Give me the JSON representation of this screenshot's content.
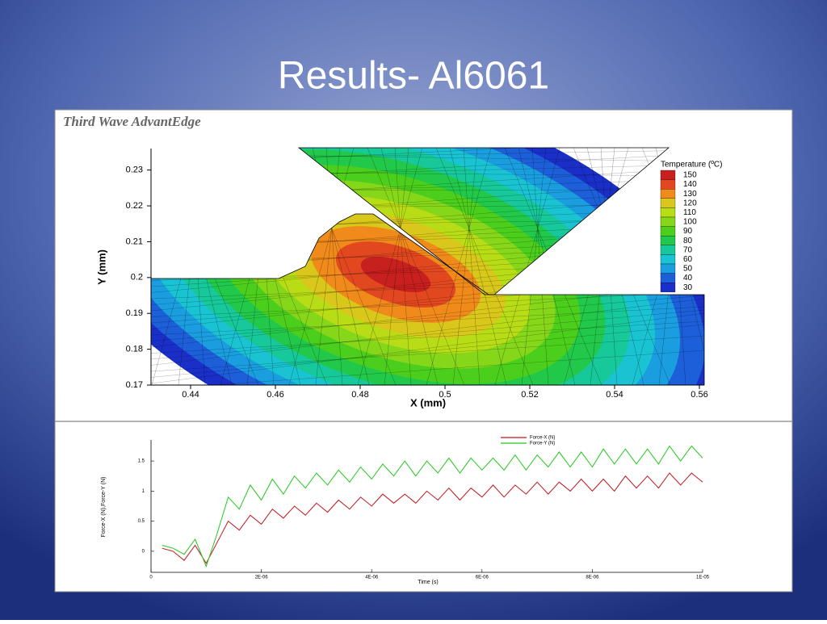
{
  "title": "Results- Al6061",
  "software": "Third Wave AdvantEdge",
  "chart_data": [
    {
      "type": "contour",
      "xlabel": "X (mm)",
      "ylabel": "Y (mm)",
      "xlim": [
        0.43,
        0.56
      ],
      "ylim": [
        0.17,
        0.236
      ],
      "xticks": [
        0.44,
        0.46,
        0.48,
        0.5,
        0.52,
        0.54,
        0.56
      ],
      "yticks": [
        0.17,
        0.18,
        0.19,
        0.2,
        0.21,
        0.22,
        0.23
      ],
      "colorbar": {
        "title": "Temperature (ºC)",
        "levels": [
          150,
          140,
          130,
          120,
          110,
          100,
          90,
          80,
          70,
          60,
          50,
          40,
          30
        ],
        "colors": [
          "#c8201e",
          "#e2481f",
          "#f08a1a",
          "#d9c81b",
          "#b8dd16",
          "#86d61a",
          "#4ccf1c",
          "#22c84a",
          "#17c89a",
          "#1ac3d2",
          "#1a9ee0",
          "#1c5fd8",
          "#1a2fc8"
        ]
      }
    },
    {
      "type": "line",
      "xlabel": "Time (s)",
      "ylabel": "Force-X (N),Force-Y (N)",
      "xlim": [
        0,
        1e-05
      ],
      "ylim": [
        -0.35,
        1.85
      ],
      "xticks": [
        0,
        {
          "value": 2e-06,
          "label": "2E-06"
        },
        {
          "value": 4e-06,
          "label": "4E-06"
        },
        {
          "value": 6e-06,
          "label": "6E-06"
        },
        {
          "value": 8e-06,
          "label": "8E-06"
        },
        {
          "value": 1e-05,
          "label": "1E-05"
        }
      ],
      "yticks": [
        0,
        0.5,
        1,
        1.5
      ],
      "x": [
        2e-07,
        4e-07,
        6e-07,
        8e-07,
        1e-06,
        1.2e-06,
        1.4e-06,
        1.6e-06,
        1.8e-06,
        2e-06,
        2.2e-06,
        2.4e-06,
        2.6e-06,
        2.8e-06,
        3e-06,
        3.2e-06,
        3.4e-06,
        3.6e-06,
        3.8e-06,
        4e-06,
        4.2e-06,
        4.4e-06,
        4.6e-06,
        4.8e-06,
        5e-06,
        5.2e-06,
        5.4e-06,
        5.6e-06,
        5.8e-06,
        6e-06,
        6.2e-06,
        6.4e-06,
        6.6e-06,
        6.8e-06,
        7e-06,
        7.2e-06,
        7.4e-06,
        7.6e-06,
        7.8e-06,
        8e-06,
        8.2e-06,
        8.4e-06,
        8.6e-06,
        8.8e-06,
        9e-06,
        9.2e-06,
        9.4e-06,
        9.6e-06,
        9.8e-06,
        1e-05
      ],
      "series": [
        {
          "name": "Force-X (N)",
          "color": "#c0141c",
          "values": [
            0.05,
            0.0,
            -0.15,
            0.1,
            -0.2,
            0.15,
            0.5,
            0.35,
            0.6,
            0.45,
            0.7,
            0.55,
            0.75,
            0.6,
            0.8,
            0.65,
            0.85,
            0.7,
            0.9,
            0.75,
            0.95,
            0.8,
            0.95,
            0.8,
            1.0,
            0.85,
            1.05,
            0.85,
            1.05,
            0.9,
            1.1,
            0.9,
            1.1,
            0.95,
            1.15,
            0.95,
            1.15,
            1.0,
            1.2,
            1.0,
            1.2,
            1.0,
            1.25,
            1.05,
            1.25,
            1.05,
            1.3,
            1.1,
            1.3,
            1.15
          ]
        },
        {
          "name": "Force-Y (N)",
          "color": "#22c81e",
          "values": [
            0.1,
            0.05,
            -0.05,
            0.2,
            -0.25,
            0.3,
            0.9,
            0.7,
            1.1,
            0.85,
            1.2,
            0.95,
            1.25,
            1.05,
            1.3,
            1.1,
            1.35,
            1.15,
            1.4,
            1.2,
            1.45,
            1.25,
            1.5,
            1.25,
            1.5,
            1.3,
            1.55,
            1.3,
            1.55,
            1.35,
            1.55,
            1.35,
            1.6,
            1.35,
            1.6,
            1.4,
            1.65,
            1.4,
            1.65,
            1.4,
            1.7,
            1.45,
            1.7,
            1.45,
            1.7,
            1.45,
            1.75,
            1.5,
            1.75,
            1.55
          ]
        }
      ]
    }
  ]
}
